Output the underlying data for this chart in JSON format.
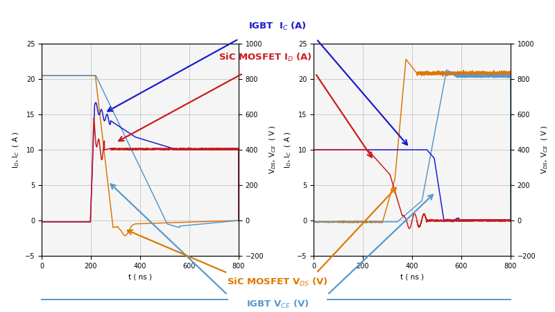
{
  "background_color": "#ffffff",
  "plot_bg": "#f5f5f5",
  "xlim": [
    0,
    800
  ],
  "ylim_left": [
    -5,
    25
  ],
  "ylim_right": [
    -200,
    1000
  ],
  "xticks": [
    0,
    200,
    400,
    600,
    800
  ],
  "yticks_left": [
    -5,
    0,
    5,
    10,
    15,
    20,
    25
  ],
  "yticks_right": [
    -200,
    0,
    200,
    400,
    600,
    800,
    1000
  ],
  "xlabel": "t ( ns )",
  "ylabel_left": "I$_D$, I$_C$  ( A )",
  "ylabel_right": "V$_{DS}$, V$_{CE}$  ( V )",
  "colors": {
    "blue": "#1a1acc",
    "red": "#cc1a1a",
    "orange": "#dd7700",
    "light_blue": "#5599cc"
  },
  "ann_igbt_ic": "IGBT  I$_C$ (A)",
  "ann_sic_id": "SiC MOSFET I$_D$ (A)",
  "ann_sic_vds": "SiC MOSFET V$_{DS}$ (V)",
  "ann_igbt_vce": "IGBT V$_{CE}$ (V)"
}
